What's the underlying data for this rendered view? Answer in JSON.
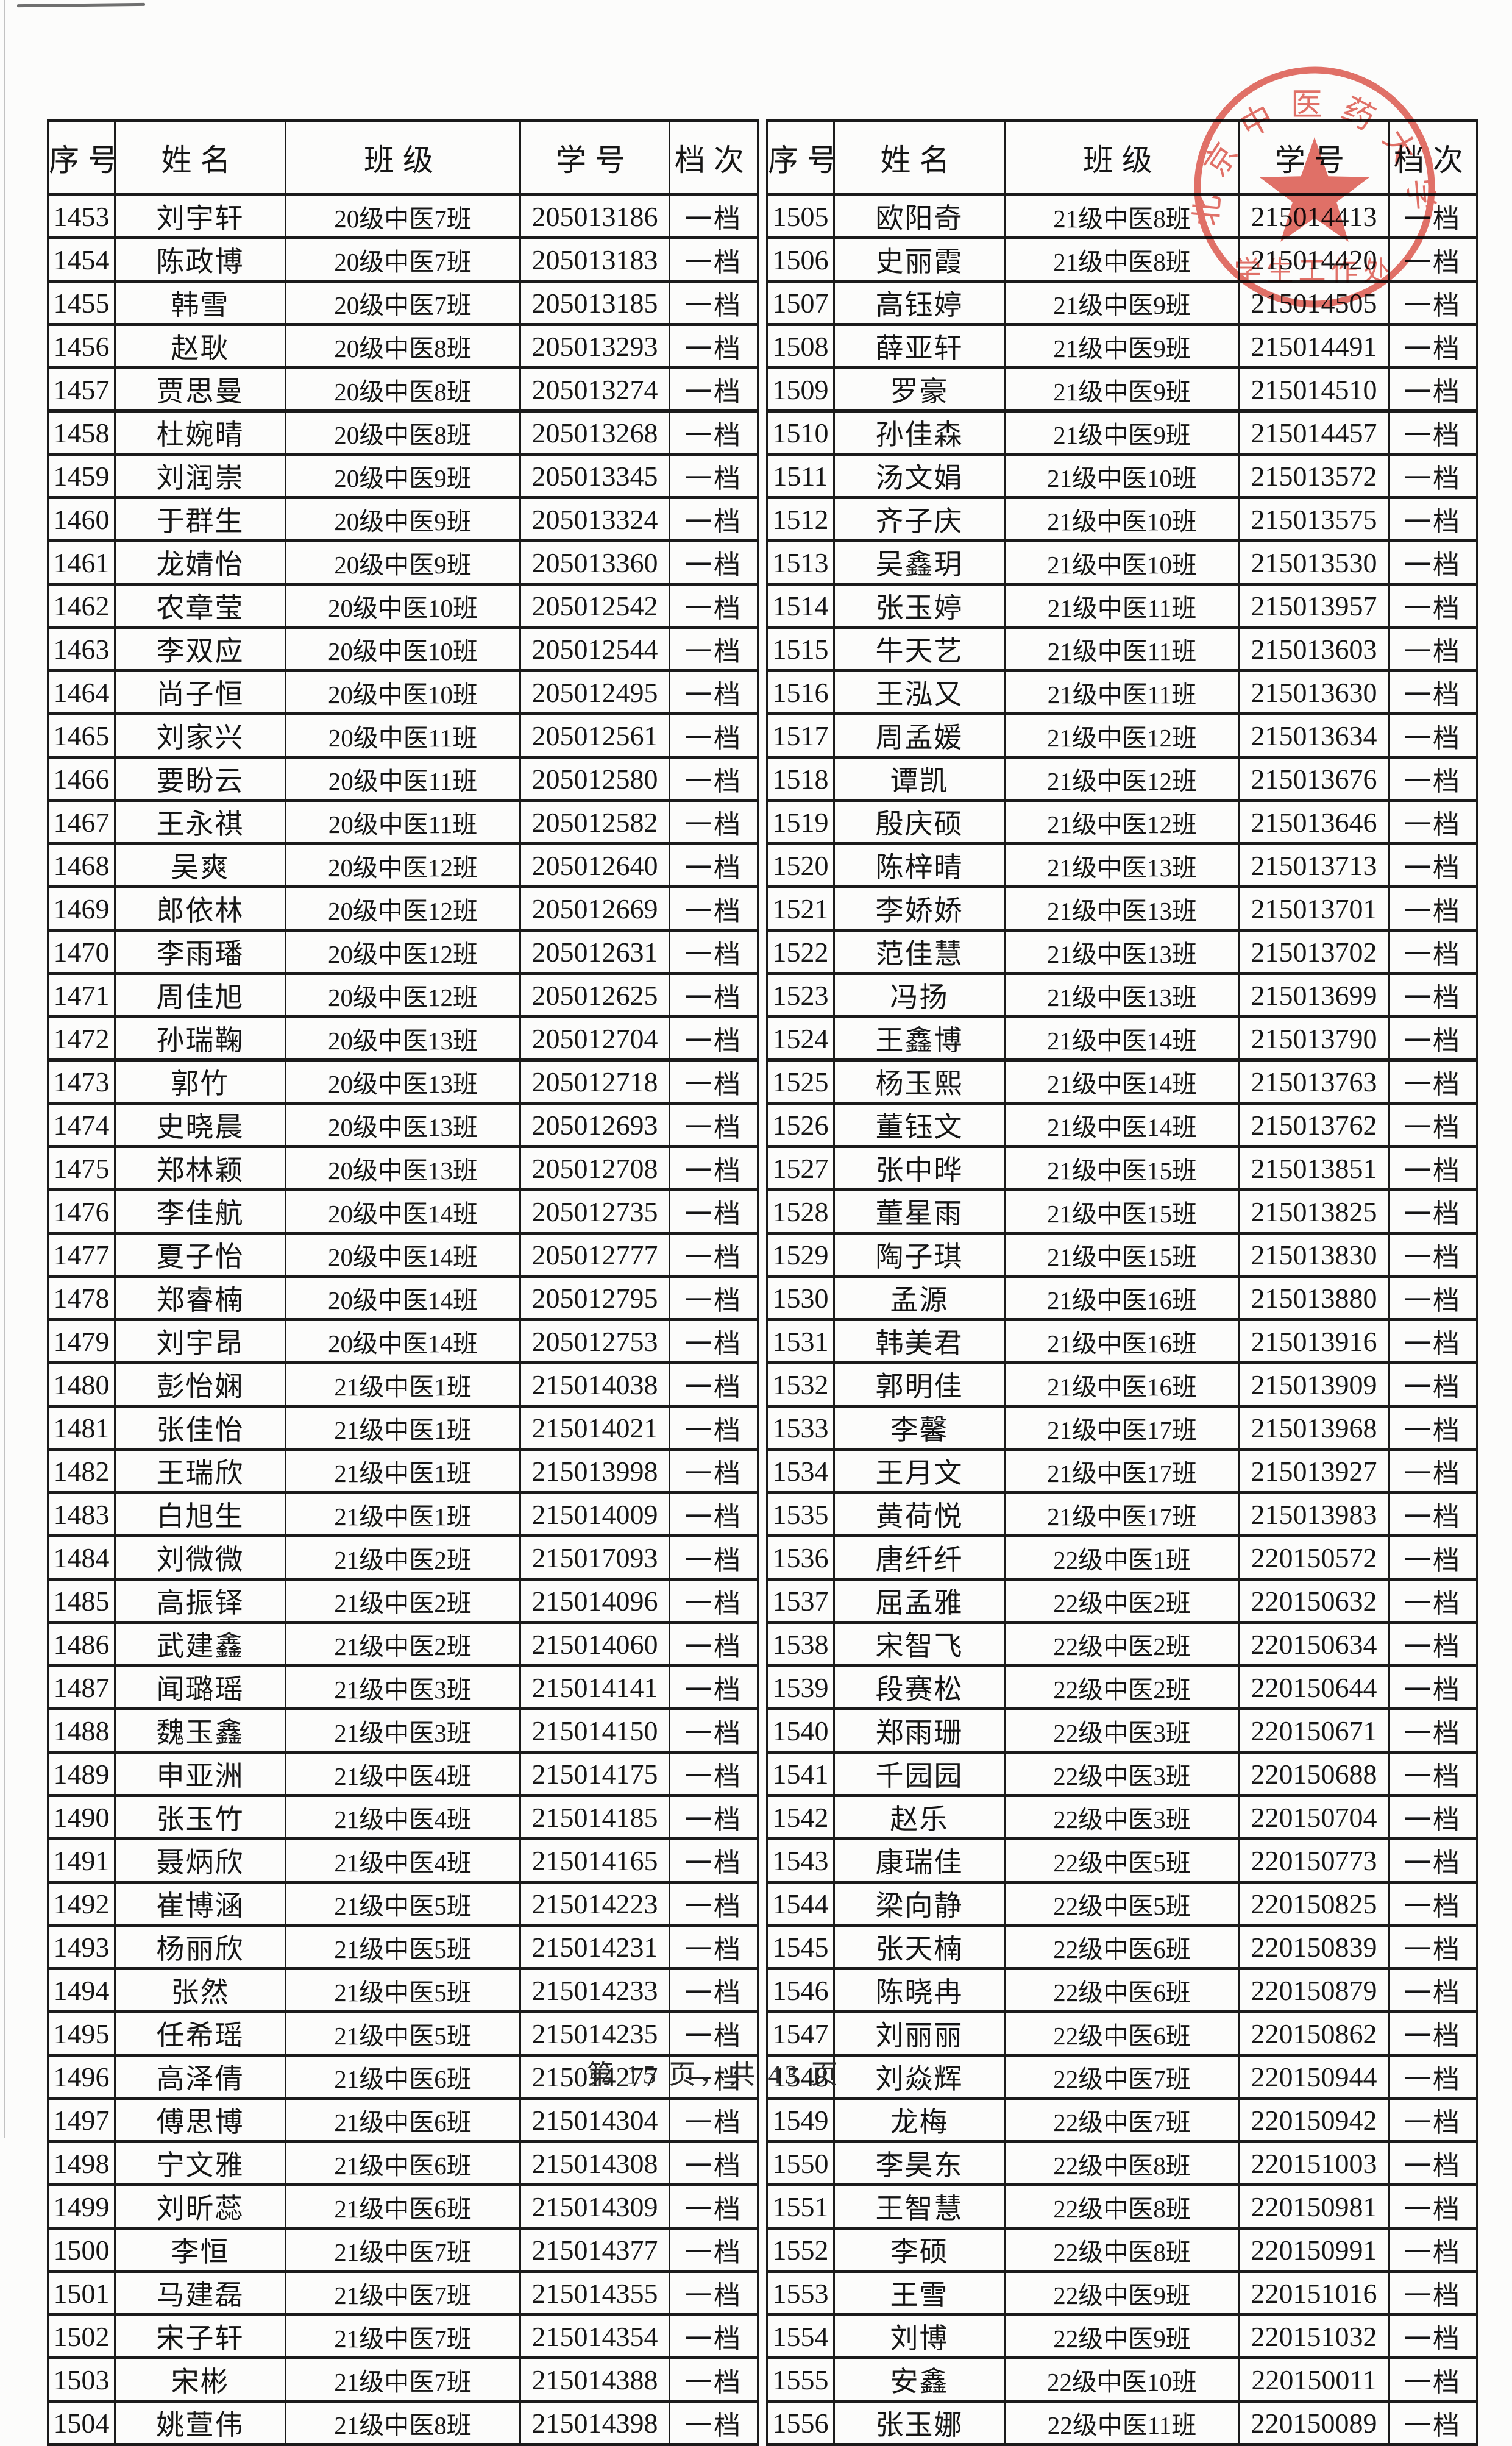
{
  "table": {
    "headers": [
      "序号",
      "姓名",
      "班级",
      "学号",
      "档次"
    ]
  },
  "left_rows": [
    [
      "1453",
      "刘宇轩",
      "20级中医7班",
      "205013186",
      "一档"
    ],
    [
      "1454",
      "陈政博",
      "20级中医7班",
      "205013183",
      "一档"
    ],
    [
      "1455",
      "韩雪",
      "20级中医7班",
      "205013185",
      "一档"
    ],
    [
      "1456",
      "赵耿",
      "20级中医8班",
      "205013293",
      "一档"
    ],
    [
      "1457",
      "贾思曼",
      "20级中医8班",
      "205013274",
      "一档"
    ],
    [
      "1458",
      "杜婉晴",
      "20级中医8班",
      "205013268",
      "一档"
    ],
    [
      "1459",
      "刘润崇",
      "20级中医9班",
      "205013345",
      "一档"
    ],
    [
      "1460",
      "于群生",
      "20级中医9班",
      "205013324",
      "一档"
    ],
    [
      "1461",
      "龙婧怡",
      "20级中医9班",
      "205013360",
      "一档"
    ],
    [
      "1462",
      "农章莹",
      "20级中医10班",
      "205012542",
      "一档"
    ],
    [
      "1463",
      "李双应",
      "20级中医10班",
      "205012544",
      "一档"
    ],
    [
      "1464",
      "尚子恒",
      "20级中医10班",
      "205012495",
      "一档"
    ],
    [
      "1465",
      "刘家兴",
      "20级中医11班",
      "205012561",
      "一档"
    ],
    [
      "1466",
      "要盼云",
      "20级中医11班",
      "205012580",
      "一档"
    ],
    [
      "1467",
      "王永祺",
      "20级中医11班",
      "205012582",
      "一档"
    ],
    [
      "1468",
      "吴爽",
      "20级中医12班",
      "205012640",
      "一档"
    ],
    [
      "1469",
      "郎依林",
      "20级中医12班",
      "205012669",
      "一档"
    ],
    [
      "1470",
      "李雨璠",
      "20级中医12班",
      "205012631",
      "一档"
    ],
    [
      "1471",
      "周佳旭",
      "20级中医12班",
      "205012625",
      "一档"
    ],
    [
      "1472",
      "孙瑞鞠",
      "20级中医13班",
      "205012704",
      "一档"
    ],
    [
      "1473",
      "郭竹",
      "20级中医13班",
      "205012718",
      "一档"
    ],
    [
      "1474",
      "史晓晨",
      "20级中医13班",
      "205012693",
      "一档"
    ],
    [
      "1475",
      "郑林颖",
      "20级中医13班",
      "205012708",
      "一档"
    ],
    [
      "1476",
      "李佳航",
      "20级中医14班",
      "205012735",
      "一档"
    ],
    [
      "1477",
      "夏子怡",
      "20级中医14班",
      "205012777",
      "一档"
    ],
    [
      "1478",
      "郑睿楠",
      "20级中医14班",
      "205012795",
      "一档"
    ],
    [
      "1479",
      "刘宇昂",
      "20级中医14班",
      "205012753",
      "一档"
    ],
    [
      "1480",
      "彭怡娴",
      "21级中医1班",
      "215014038",
      "一档"
    ],
    [
      "1481",
      "张佳怡",
      "21级中医1班",
      "215014021",
      "一档"
    ],
    [
      "1482",
      "王瑞欣",
      "21级中医1班",
      "215013998",
      "一档"
    ],
    [
      "1483",
      "白旭生",
      "21级中医1班",
      "215014009",
      "一档"
    ],
    [
      "1484",
      "刘微微",
      "21级中医2班",
      "215017093",
      "一档"
    ],
    [
      "1485",
      "高振铎",
      "21级中医2班",
      "215014096",
      "一档"
    ],
    [
      "1486",
      "武建鑫",
      "21级中医2班",
      "215014060",
      "一档"
    ],
    [
      "1487",
      "闻璐瑶",
      "21级中医3班",
      "215014141",
      "一档"
    ],
    [
      "1488",
      "魏玉鑫",
      "21级中医3班",
      "215014150",
      "一档"
    ],
    [
      "1489",
      "申亚洲",
      "21级中医4班",
      "215014175",
      "一档"
    ],
    [
      "1490",
      "张玉竹",
      "21级中医4班",
      "215014185",
      "一档"
    ],
    [
      "1491",
      "聂炳欣",
      "21级中医4班",
      "215014165",
      "一档"
    ],
    [
      "1492",
      "崔博涵",
      "21级中医5班",
      "215014223",
      "一档"
    ],
    [
      "1493",
      "杨丽欣",
      "21级中医5班",
      "215014231",
      "一档"
    ],
    [
      "1494",
      "张然",
      "21级中医5班",
      "215014233",
      "一档"
    ],
    [
      "1495",
      "任希瑶",
      "21级中医5班",
      "215014235",
      "一档"
    ],
    [
      "1496",
      "高泽倩",
      "21级中医6班",
      "215014277",
      "一档"
    ],
    [
      "1497",
      "傅思博",
      "21级中医6班",
      "215014304",
      "一档"
    ],
    [
      "1498",
      "宁文雅",
      "21级中医6班",
      "215014308",
      "一档"
    ],
    [
      "1499",
      "刘昕蕊",
      "21级中医6班",
      "215014309",
      "一档"
    ],
    [
      "1500",
      "李恒",
      "21级中医7班",
      "215014377",
      "一档"
    ],
    [
      "1501",
      "马建磊",
      "21级中医7班",
      "215014355",
      "一档"
    ],
    [
      "1502",
      "宋子轩",
      "21级中医7班",
      "215014354",
      "一档"
    ],
    [
      "1503",
      "宋彬",
      "21级中医7班",
      "215014388",
      "一档"
    ],
    [
      "1504",
      "姚萱伟",
      "21级中医8班",
      "215014398",
      "一档"
    ]
  ],
  "right_rows": [
    [
      "1505",
      "欧阳奇",
      "21级中医8班",
      "215014413",
      "一档"
    ],
    [
      "1506",
      "史丽霞",
      "21级中医8班",
      "215014420",
      "一档"
    ],
    [
      "1507",
      "高钰婷",
      "21级中医9班",
      "215014505",
      "一档"
    ],
    [
      "1508",
      "薛亚轩",
      "21级中医9班",
      "215014491",
      "一档"
    ],
    [
      "1509",
      "罗豪",
      "21级中医9班",
      "215014510",
      "一档"
    ],
    [
      "1510",
      "孙佳森",
      "21级中医9班",
      "215014457",
      "一档"
    ],
    [
      "1511",
      "汤文娟",
      "21级中医10班",
      "215013572",
      "一档"
    ],
    [
      "1512",
      "齐子庆",
      "21级中医10班",
      "215013575",
      "一档"
    ],
    [
      "1513",
      "吴鑫玥",
      "21级中医10班",
      "215013530",
      "一档"
    ],
    [
      "1514",
      "张玉婷",
      "21级中医11班",
      "215013957",
      "一档"
    ],
    [
      "1515",
      "牛天艺",
      "21级中医11班",
      "215013603",
      "一档"
    ],
    [
      "1516",
      "王泓又",
      "21级中医11班",
      "215013630",
      "一档"
    ],
    [
      "1517",
      "周孟媛",
      "21级中医12班",
      "215013634",
      "一档"
    ],
    [
      "1518",
      "谭凯",
      "21级中医12班",
      "215013676",
      "一档"
    ],
    [
      "1519",
      "殷庆硕",
      "21级中医12班",
      "215013646",
      "一档"
    ],
    [
      "1520",
      "陈梓晴",
      "21级中医13班",
      "215013713",
      "一档"
    ],
    [
      "1521",
      "李娇娇",
      "21级中医13班",
      "215013701",
      "一档"
    ],
    [
      "1522",
      "范佳慧",
      "21级中医13班",
      "215013702",
      "一档"
    ],
    [
      "1523",
      "冯扬",
      "21级中医13班",
      "215013699",
      "一档"
    ],
    [
      "1524",
      "王鑫博",
      "21级中医14班",
      "215013790",
      "一档"
    ],
    [
      "1525",
      "杨玉熙",
      "21级中医14班",
      "215013763",
      "一档"
    ],
    [
      "1526",
      "董钰文",
      "21级中医14班",
      "215013762",
      "一档"
    ],
    [
      "1527",
      "张中晔",
      "21级中医15班",
      "215013851",
      "一档"
    ],
    [
      "1528",
      "董星雨",
      "21级中医15班",
      "215013825",
      "一档"
    ],
    [
      "1529",
      "陶子琪",
      "21级中医15班",
      "215013830",
      "一档"
    ],
    [
      "1530",
      "孟源",
      "21级中医16班",
      "215013880",
      "一档"
    ],
    [
      "1531",
      "韩美君",
      "21级中医16班",
      "215013916",
      "一档"
    ],
    [
      "1532",
      "郭明佳",
      "21级中医16班",
      "215013909",
      "一档"
    ],
    [
      "1533",
      "李馨",
      "21级中医17班",
      "215013968",
      "一档"
    ],
    [
      "1534",
      "王月文",
      "21级中医17班",
      "215013927",
      "一档"
    ],
    [
      "1535",
      "黄荷悦",
      "21级中医17班",
      "215013983",
      "一档"
    ],
    [
      "1536",
      "唐纤纤",
      "22级中医1班",
      "220150572",
      "一档"
    ],
    [
      "1537",
      "屈孟雅",
      "22级中医2班",
      "220150632",
      "一档"
    ],
    [
      "1538",
      "宋智飞",
      "22级中医2班",
      "220150634",
      "一档"
    ],
    [
      "1539",
      "段赛松",
      "22级中医2班",
      "220150644",
      "一档"
    ],
    [
      "1540",
      "郑雨珊",
      "22级中医3班",
      "220150671",
      "一档"
    ],
    [
      "1541",
      "千园园",
      "22级中医3班",
      "220150688",
      "一档"
    ],
    [
      "1542",
      "赵乐",
      "22级中医3班",
      "220150704",
      "一档"
    ],
    [
      "1543",
      "康瑞佳",
      "22级中医5班",
      "220150773",
      "一档"
    ],
    [
      "1544",
      "梁向静",
      "22级中医5班",
      "220150825",
      "一档"
    ],
    [
      "1545",
      "张天楠",
      "22级中医6班",
      "220150839",
      "一档"
    ],
    [
      "1546",
      "陈晓冉",
      "22级中医6班",
      "220150879",
      "一档"
    ],
    [
      "1547",
      "刘丽丽",
      "22级中医6班",
      "220150862",
      "一档"
    ],
    [
      "1548",
      "刘焱辉",
      "22级中医7班",
      "220150944",
      "一档"
    ],
    [
      "1549",
      "龙梅",
      "22级中医7班",
      "220150942",
      "一档"
    ],
    [
      "1550",
      "李昊东",
      "22级中医8班",
      "220151003",
      "一档"
    ],
    [
      "1551",
      "王智慧",
      "22级中医8班",
      "220150981",
      "一档"
    ],
    [
      "1552",
      "李硕",
      "22级中医8班",
      "220150991",
      "一档"
    ],
    [
      "1553",
      "王雪",
      "22级中医9班",
      "220151016",
      "一档"
    ],
    [
      "1554",
      "刘博",
      "22级中医9班",
      "220151032",
      "一档"
    ],
    [
      "1555",
      "安鑫",
      "22级中医10班",
      "220150011",
      "一档"
    ],
    [
      "1556",
      "张玉娜",
      "22级中医11班",
      "220150089",
      "一档"
    ]
  ],
  "stamp": {
    "arc_text": "北京中医药大学",
    "bottom_text": "学生工作处",
    "color": "#dd5248"
  },
  "footer": {
    "page_text": "第 15 页，共 43 页"
  }
}
